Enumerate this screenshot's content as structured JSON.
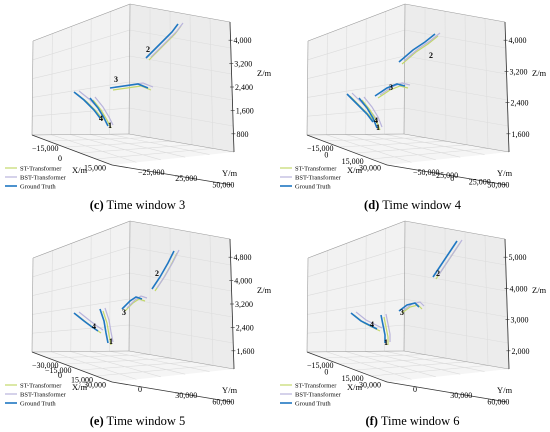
{
  "legend_entries": [
    "ST-Transformer",
    "BST-Transformer",
    "Ground Truth"
  ],
  "colors": {
    "st": "#c3d86a",
    "bst": "#b9b4dc",
    "gt": "#1f77c2",
    "pane": "#f2f2f2",
    "grid": "#dcdcdc",
    "edge": "#9a9a9a"
  },
  "chart_data": [
    {
      "type": "line",
      "panel_letter": "(c)",
      "title": "Time window 3",
      "xlabel": "X/m",
      "ylabel": "Y/m",
      "zlabel": "Z/m",
      "x_ticks": [
        "−15,000",
        "0",
        "15,000"
      ],
      "y_ticks": [
        "50,000",
        "25,000",
        "−25,000"
      ],
      "z_ticks": [
        "4,000",
        "3,200",
        "2,400",
        "1,600",
        "800"
      ],
      "trajectory_labels": [
        "1",
        "2",
        "3",
        "4"
      ],
      "series": [
        {
          "name": "ST-Transformer"
        },
        {
          "name": "BST-Transformer"
        },
        {
          "name": "Ground Truth"
        }
      ]
    },
    {
      "type": "line",
      "panel_letter": "(d)",
      "title": "Time window 4",
      "xlabel": "X/m",
      "ylabel": "Y/m",
      "zlabel": "Z/m",
      "x_ticks": [
        "−15,000",
        "0",
        "15,000",
        "30,000"
      ],
      "y_ticks": [
        "50,000",
        "25,000",
        "0",
        "−25,000",
        "−50,000"
      ],
      "z_ticks": [
        "4,000",
        "3,200",
        "2,400",
        "1,600"
      ],
      "trajectory_labels": [
        "1",
        "2",
        "3",
        "4"
      ],
      "series": [
        {
          "name": "ST-Transformer"
        },
        {
          "name": "BST-Transformer"
        },
        {
          "name": "Ground Truth"
        }
      ]
    },
    {
      "type": "line",
      "panel_letter": "(e)",
      "title": "Time window 5",
      "xlabel": "X/m",
      "ylabel": "Y/m",
      "zlabel": "Z/m",
      "x_ticks": [
        "−30,000",
        "−15,000",
        "0",
        "15,000",
        "30,000"
      ],
      "y_ticks": [
        "60,000",
        "30,000",
        "0"
      ],
      "z_ticks": [
        "4,800",
        "4,000",
        "3,200",
        "2,400",
        "1,600"
      ],
      "trajectory_labels": [
        "1",
        "2",
        "3",
        "4"
      ],
      "series": [
        {
          "name": "ST-Transformer"
        },
        {
          "name": "BST-Transformer"
        },
        {
          "name": "Ground Truth"
        }
      ]
    },
    {
      "type": "line",
      "panel_letter": "(f)",
      "title": "Time window 6",
      "xlabel": "X/m",
      "ylabel": "Y/m",
      "zlabel": "Z/m",
      "x_ticks": [
        "−15,000",
        "0",
        "15,000",
        "30,000"
      ],
      "y_ticks": [
        "60,000",
        "30,000",
        "0"
      ],
      "z_ticks": [
        "5,000",
        "4,000",
        "3,000",
        "2,000"
      ],
      "trajectory_labels": [
        "1",
        "2",
        "3",
        "4"
      ],
      "series": [
        {
          "name": "ST-Transformer"
        },
        {
          "name": "BST-Transformer"
        },
        {
          "name": "Ground Truth"
        }
      ]
    }
  ]
}
